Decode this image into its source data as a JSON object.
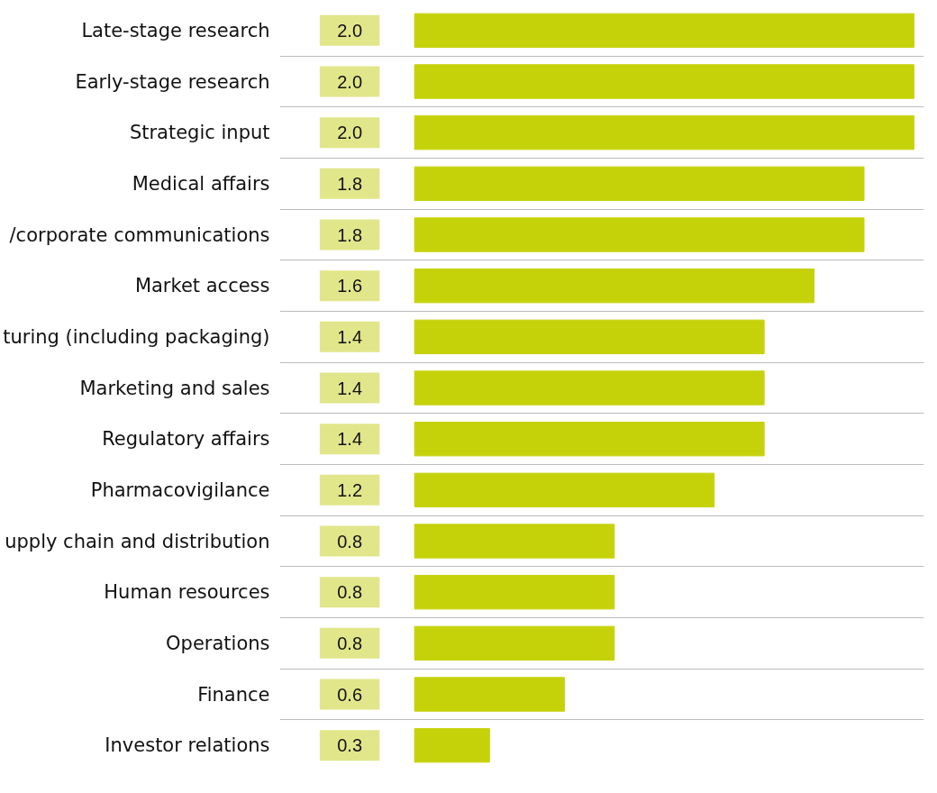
{
  "chart_data": {
    "type": "bar",
    "orientation": "horizontal",
    "grid": "y",
    "value_labels": [
      "2.0",
      "2.0",
      "2.0",
      "1.8",
      "1.8",
      "1.6",
      "1.4",
      "1.4",
      "1.4",
      "1.2",
      "0.8",
      "0.8",
      "0.8",
      "0.6",
      "0.3"
    ],
    "categories": [
      "Late-stage research",
      "Early-stage research",
      "Strategic input",
      "Medical affairs",
      "/corporate communications",
      "Market access",
      "turing (including packaging)",
      "Marketing and sales",
      "Regulatory affairs",
      "Pharmacovigilance",
      "upply chain and distribution",
      "Human resources",
      "Operations",
      "Finance",
      "Investor relations"
    ],
    "values": [
      2.0,
      2.0,
      2.0,
      1.8,
      1.8,
      1.6,
      1.4,
      1.4,
      1.4,
      1.2,
      0.8,
      0.8,
      0.8,
      0.6,
      0.3
    ],
    "color": "#c5d20a"
  }
}
